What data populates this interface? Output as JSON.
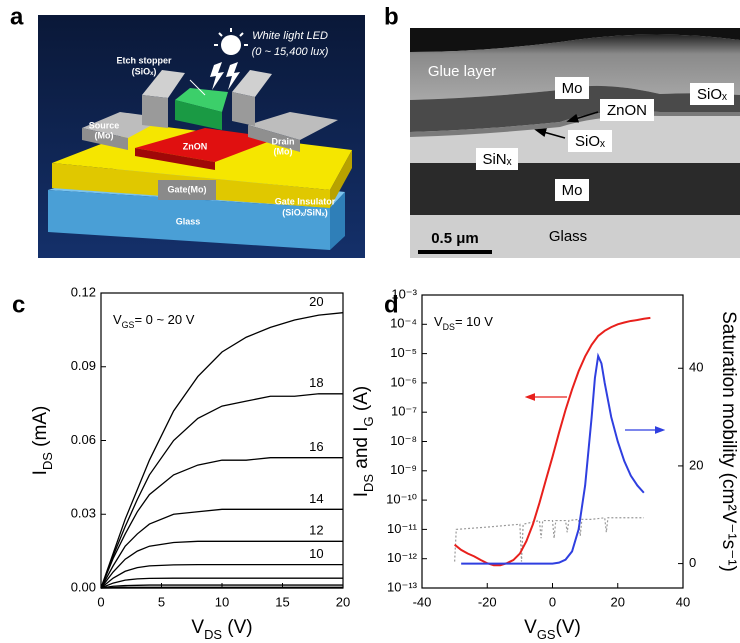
{
  "panel_labels": [
    "a",
    "b",
    "c",
    "d"
  ],
  "schematic": {
    "led": "White light LED",
    "lux": "(0 ~ 15,400 lux)",
    "etch_stopper": [
      "Etch stopper",
      "(SiOₓ)"
    ],
    "source": [
      "Source",
      "(Mo)"
    ],
    "drain": [
      "Drain",
      "(Mo)"
    ],
    "channel": "ZnON",
    "gate": "Gate(Mo)",
    "insulator": [
      "Gate Insulator",
      "(SiOₓ/SiNₓ)"
    ],
    "substrate": "Glass"
  },
  "tem": {
    "glue": "Glue layer",
    "mo_top": "Mo",
    "siox_top": "SiOₓ",
    "znon": "ZnON",
    "siox": "SiOₓ",
    "sinx": "SiNₓ",
    "mo_bottom": "Mo",
    "glass": "Glass",
    "scale": "0.5 μm"
  },
  "chart_data": [
    {
      "type": "line",
      "x": [
        0,
        1,
        2,
        3,
        4,
        6,
        8,
        10,
        12,
        14,
        16,
        18,
        20
      ],
      "xlim": [
        0,
        20
      ],
      "xticks": [
        0,
        5,
        10,
        15,
        20
      ],
      "ylim": [
        0,
        0.12
      ],
      "yticks": [
        {
          "value": 0,
          "label": "0.00"
        },
        0.03,
        0.06,
        0.09,
        0.12
      ],
      "x_label": [
        {
          "text": "V"
        },
        {
          "text": "DS",
          "sub": true
        },
        {
          "text": " (V)"
        }
      ],
      "y_label": [
        {
          "text": "I"
        },
        {
          "text": "DS",
          "sub": true
        },
        {
          "text": " (mA)"
        }
      ],
      "annotation": [
        {
          "text": "V"
        },
        {
          "text": "GS",
          "sub": true
        },
        {
          "text": "= 0 ~ 20 V"
        }
      ],
      "series": [
        {
          "name": "20",
          "color": "#000000",
          "values": [
            0,
            0.014,
            0.028,
            0.04,
            0.052,
            0.072,
            0.086,
            0.096,
            0.102,
            0.106,
            0.109,
            0.111,
            0.112
          ]
        },
        {
          "name": "18",
          "color": "#000000",
          "values": [
            0,
            0.013,
            0.025,
            0.036,
            0.046,
            0.06,
            0.069,
            0.074,
            0.076,
            0.078,
            0.078,
            0.079,
            0.079
          ]
        },
        {
          "name": "16",
          "color": "#000000",
          "values": [
            0,
            0.012,
            0.022,
            0.031,
            0.038,
            0.046,
            0.05,
            0.052,
            0.052,
            0.053,
            0.053,
            0.053,
            0.053
          ]
        },
        {
          "name": "14",
          "color": "#000000",
          "values": [
            0,
            0.009,
            0.017,
            0.022,
            0.026,
            0.03,
            0.031,
            0.032,
            0.032,
            0.032,
            0.032,
            0.032,
            0.032
          ]
        },
        {
          "name": "12",
          "color": "#000000",
          "values": [
            0,
            0.0065,
            0.0117,
            0.015,
            0.017,
            0.0185,
            0.019,
            0.019,
            0.019,
            0.019,
            0.019,
            0.019,
            0.019
          ]
        },
        {
          "name": "10",
          "color": "#000000",
          "values": [
            0,
            0.004,
            0.0068,
            0.0083,
            0.009,
            0.0094,
            0.0095,
            0.0095,
            0.0095,
            0.0095,
            0.0095,
            0.0095,
            0.0095
          ]
        },
        {
          "color": "#000000",
          "values": [
            0,
            0.002,
            0.0032,
            0.0037,
            0.0039,
            0.004,
            0.004,
            0.004,
            0.004,
            0.004,
            0.004,
            0.004,
            0.004
          ]
        },
        {
          "color": "#000000",
          "values": [
            0,
            0.0007,
            0.001,
            0.0011,
            0.0012,
            0.0012,
            0.0012,
            0.0012,
            0.0012,
            0.0012,
            0.0012,
            0.0012,
            0.0012
          ]
        },
        {
          "color": "#000000",
          "values": [
            0,
            0.0002,
            0.0003,
            0.0003,
            0.0003,
            0.0003,
            0.0003,
            0.0003,
            0.0003,
            0.0003,
            0.0003,
            0.0003,
            0.0003
          ]
        },
        {
          "color": "#000000",
          "values": [
            0,
            5e-05,
            0.0001,
            0.0001,
            0.0001,
            0.0001,
            0.0001,
            0.0001,
            0.0001,
            0.0001,
            0.0001,
            0.0001,
            0.0001
          ]
        },
        {
          "color": "#000000",
          "values": [
            0,
            0,
            0,
            0,
            0,
            0,
            0,
            0,
            0,
            0,
            0,
            0,
            0
          ]
        }
      ]
    },
    {
      "type": "line",
      "y_scale": "log",
      "xlim": [
        -40,
        40
      ],
      "xticks": [
        -40,
        -20,
        0,
        20,
        40
      ],
      "ylim": [
        1e-13,
        0.001
      ],
      "yticks": [
        {
          "value": 1e-13,
          "label": "10⁻¹³"
        },
        {
          "value": 1e-12,
          "label": "10⁻¹²"
        },
        {
          "value": 1e-11,
          "label": "10⁻¹¹"
        },
        {
          "value": 1e-10,
          "label": "10⁻¹⁰"
        },
        {
          "value": 1e-09,
          "label": "10⁻⁹"
        },
        {
          "value": 1e-08,
          "label": "10⁻⁸"
        },
        {
          "value": 1e-07,
          "label": "10⁻⁷"
        },
        {
          "value": 1e-06,
          "label": "10⁻⁶"
        },
        {
          "value": 1e-05,
          "label": "10⁻⁵"
        },
        {
          "value": 0.0001,
          "label": "10⁻⁴"
        },
        {
          "value": 0.001,
          "label": "10⁻³"
        }
      ],
      "y2lim": [
        -5,
        55
      ],
      "y2ticks": [
        0,
        20,
        40
      ],
      "x_label": [
        {
          "text": "V"
        },
        {
          "text": "GS",
          "sub": true
        },
        {
          "text": "(V)"
        }
      ],
      "y_label": [
        {
          "text": "I"
        },
        {
          "text": "DS",
          "sub": true
        },
        {
          "text": " and I"
        },
        {
          "text": "G",
          "sub": true
        },
        {
          "text": " (A)"
        }
      ],
      "y2_label": "Saturation mobility (cm²V⁻¹s⁻¹)",
      "annotation": [
        {
          "text": "V"
        },
        {
          "text": "DS",
          "sub": true
        },
        {
          "text": "= 10 V"
        }
      ],
      "series": [
        {
          "color": "#9a9a9a",
          "style": "dotted",
          "x": [
            -30,
            -29.5,
            -20,
            -10,
            -9.5,
            -9,
            -4,
            -3.5,
            -3,
            0,
            0.5,
            1,
            4,
            4.5,
            5,
            8,
            8.5,
            9,
            12,
            16,
            16.5,
            17,
            28
          ],
          "values": [
            8e-13,
            1e-11,
            1.2e-11,
            1.5e-11,
            8e-13,
            1.5e-11,
            2e-11,
            5e-12,
            2e-11,
            2e-11,
            5e-12,
            2e-11,
            2e-11,
            8e-12,
            2e-11,
            2.2e-11,
            6e-12,
            2.2e-11,
            2.2e-11,
            2.5e-11,
            8e-12,
            2.5e-11,
            2.5e-11
          ]
        },
        {
          "color": "#e8201c",
          "x": [
            -30,
            -28,
            -26,
            -24,
            -22,
            -20,
            -18,
            -16,
            -14,
            -12,
            -10,
            -8,
            -6,
            -4,
            -2,
            0,
            2,
            4,
            6,
            8,
            10,
            12,
            14,
            16,
            18,
            20,
            22,
            24,
            26,
            28,
            30
          ],
          "values": [
            3e-12,
            2e-12,
            1.5e-12,
            1.2e-12,
            9e-13,
            7e-13,
            6e-13,
            6e-13,
            7e-13,
            9e-13,
            1.5e-12,
            4e-12,
            1.5e-11,
            8e-11,
            5e-10,
            3e-09,
            2e-08,
            1.2e-07,
            6e-07,
            2.5e-06,
            8e-06,
            2e-05,
            4e-05,
            6e-05,
            8e-05,
            0.0001,
            0.000115,
            0.00013,
            0.00014,
            0.000155,
            0.000165
          ]
        },
        {
          "color": "#2f3fe0",
          "axis": "y2",
          "x": [
            -28,
            -20,
            -10,
            0,
            2,
            4,
            6,
            8,
            10,
            12,
            13,
            14,
            15,
            16,
            18,
            20,
            22,
            24,
            26,
            28
          ],
          "values": [
            0,
            0,
            0,
            0,
            0.2,
            0.8,
            2.5,
            7,
            16,
            30,
            38,
            42.5,
            41,
            37,
            30,
            25,
            21,
            18,
            16,
            14.5
          ]
        }
      ]
    }
  ]
}
